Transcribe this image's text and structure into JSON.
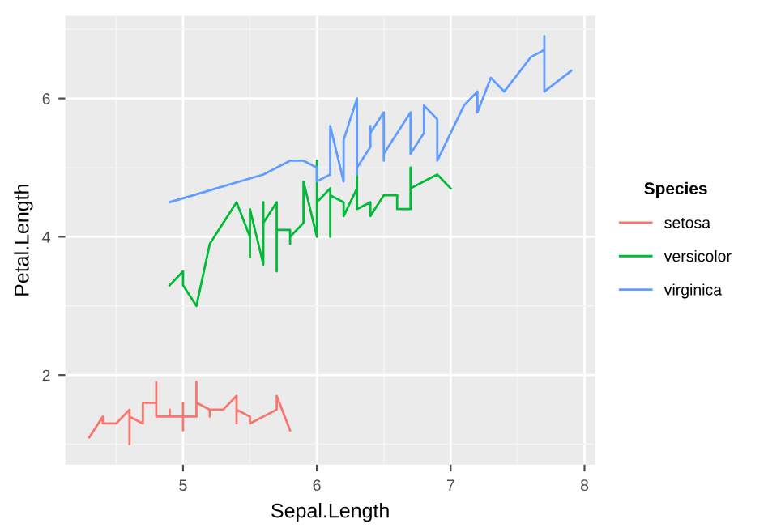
{
  "chart_data": {
    "type": "line",
    "xlabel": "Sepal.Length",
    "ylabel": "Petal.Length",
    "legend_title": "Species",
    "legend": "right",
    "grid": true,
    "xlim": [
      4.12,
      8.08
    ],
    "xticks": [
      5,
      6,
      7,
      8
    ],
    "ylim": [
      0.705,
      7.195
    ],
    "yticks": [
      2,
      4,
      6
    ],
    "series": [
      {
        "name": "setosa",
        "color": "#f8766d",
        "x": [
          4.3,
          4.4,
          4.4,
          4.4,
          4.5,
          4.6,
          4.6,
          4.6,
          4.6,
          4.7,
          4.7,
          4.8,
          4.8,
          4.8,
          4.8,
          4.8,
          4.9,
          4.9,
          4.9,
          4.9,
          5.0,
          5.0,
          5.0,
          5.0,
          5.0,
          5.0,
          5.0,
          5.0,
          5.1,
          5.1,
          5.1,
          5.1,
          5.1,
          5.1,
          5.1,
          5.1,
          5.2,
          5.2,
          5.2,
          5.3,
          5.4,
          5.4,
          5.4,
          5.4,
          5.4,
          5.5,
          5.5,
          5.7,
          5.7,
          5.8
        ],
        "values": [
          1.1,
          1.4,
          1.3,
          1.3,
          1.3,
          1.5,
          1.4,
          1.0,
          1.4,
          1.3,
          1.6,
          1.6,
          1.4,
          1.9,
          1.6,
          1.4,
          1.4,
          1.5,
          1.5,
          1.4,
          1.4,
          1.5,
          1.6,
          1.6,
          1.2,
          1.3,
          1.6,
          1.4,
          1.4,
          1.4,
          1.5,
          1.5,
          1.7,
          1.5,
          1.9,
          1.6,
          1.5,
          1.4,
          1.5,
          1.5,
          1.7,
          1.5,
          1.3,
          1.7,
          1.5,
          1.4,
          1.3,
          1.5,
          1.7,
          1.2
        ]
      },
      {
        "name": "versicolor",
        "color": "#00ba38",
        "x": [
          4.9,
          5.0,
          5.0,
          5.1,
          5.2,
          5.4,
          5.5,
          5.5,
          5.5,
          5.5,
          5.5,
          5.6,
          5.6,
          5.6,
          5.6,
          5.6,
          5.7,
          5.7,
          5.7,
          5.7,
          5.7,
          5.8,
          5.8,
          5.8,
          5.9,
          5.9,
          6.0,
          6.0,
          6.0,
          6.0,
          6.1,
          6.1,
          6.1,
          6.1,
          6.2,
          6.2,
          6.3,
          6.3,
          6.3,
          6.4,
          6.4,
          6.5,
          6.6,
          6.6,
          6.7,
          6.7,
          6.7,
          6.8,
          6.9,
          7.0
        ],
        "values": [
          3.3,
          3.5,
          3.3,
          3.0,
          3.9,
          4.5,
          4.0,
          3.8,
          3.7,
          4.0,
          4.4,
          3.6,
          4.5,
          3.9,
          4.1,
          4.2,
          4.5,
          3.5,
          4.2,
          4.2,
          4.1,
          4.1,
          3.9,
          4.0,
          4.2,
          4.8,
          4.0,
          4.5,
          5.1,
          4.5,
          4.7,
          4.0,
          4.7,
          4.6,
          4.5,
          4.3,
          4.7,
          4.9,
          4.4,
          4.5,
          4.3,
          4.6,
          4.6,
          4.4,
          4.4,
          5.0,
          4.7,
          4.8,
          4.9,
          4.7
        ]
      },
      {
        "name": "virginica",
        "color": "#619cff",
        "x": [
          4.9,
          5.6,
          5.7,
          5.8,
          5.8,
          5.8,
          5.9,
          6.0,
          6.0,
          6.1,
          6.1,
          6.2,
          6.2,
          6.3,
          6.3,
          6.3,
          6.3,
          6.3,
          6.3,
          6.4,
          6.4,
          6.4,
          6.4,
          6.4,
          6.5,
          6.5,
          6.5,
          6.5,
          6.7,
          6.7,
          6.7,
          6.7,
          6.7,
          6.8,
          6.8,
          6.9,
          6.9,
          6.9,
          7.1,
          7.2,
          7.2,
          7.2,
          7.3,
          7.4,
          7.6,
          7.7,
          7.7,
          7.7,
          7.7,
          7.9
        ],
        "values": [
          4.5,
          4.9,
          5.0,
          5.1,
          5.1,
          5.1,
          5.1,
          5.0,
          4.8,
          4.9,
          5.6,
          4.8,
          5.4,
          6.0,
          5.6,
          4.9,
          5.1,
          5.6,
          5.0,
          5.3,
          5.3,
          5.6,
          5.6,
          5.5,
          5.8,
          5.1,
          5.5,
          5.2,
          5.8,
          5.7,
          5.6,
          5.7,
          5.2,
          5.5,
          5.9,
          5.7,
          5.4,
          5.1,
          5.9,
          6.1,
          6.0,
          5.8,
          6.3,
          6.1,
          6.6,
          6.7,
          6.9,
          6.7,
          6.1,
          6.4
        ]
      }
    ]
  }
}
